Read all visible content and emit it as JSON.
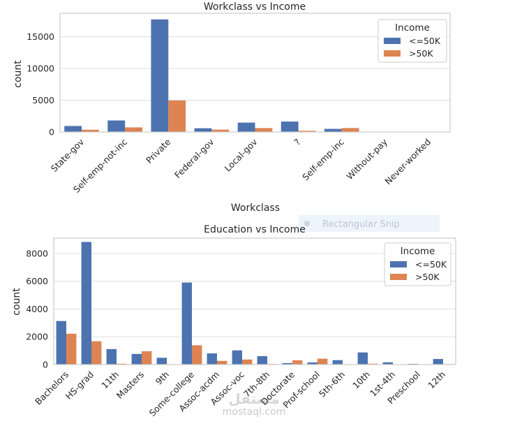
{
  "colors": {
    "low": "#4c72b0",
    "high": "#dd8452"
  },
  "legend": {
    "title": "Income",
    "labels": [
      "<=50K",
      ">50K"
    ]
  },
  "overlay": {
    "snip_label": "Rectangular Snip",
    "watermark_logo": "مستقل",
    "watermark_text": "mostaql.com"
  },
  "chart_data": [
    {
      "type": "bar",
      "title": "Workclass vs Income",
      "xlabel": "Workclass",
      "ylabel": "count",
      "categories": [
        "State-gov",
        "Self-emp-not-inc",
        "Private",
        "Federal-gov",
        "Local-gov",
        "?",
        "Self-emp-inc",
        "Without-pay",
        "Never-worked"
      ],
      "series": [
        {
          "name": "<=50K",
          "values": [
            945,
            1817,
            17733,
            589,
            1476,
            1645,
            494,
            14,
            7
          ]
        },
        {
          "name": ">50K",
          "values": [
            353,
            724,
            4963,
            371,
            617,
            191,
            622,
            0,
            0
          ]
        }
      ],
      "ylim": [
        0,
        18700
      ],
      "yticks": [
        0,
        5000,
        10000,
        15000
      ],
      "yticklabels": [
        "0",
        "5000",
        "10000",
        "15000"
      ]
    },
    {
      "type": "bar",
      "title": "Education vs Income",
      "xlabel": "",
      "ylabel": "count",
      "categories": [
        "Bachelors",
        "HS-grad",
        "11th",
        "Masters",
        "9th",
        "Some-college",
        "Assoc-acdm",
        "Assoc-voc",
        "7th-8th",
        "Doctorate",
        "Prof-school",
        "5th-6th",
        "10th",
        "1st-4th",
        "Preschool",
        "12th"
      ],
      "series": [
        {
          "name": "<=50K",
          "values": [
            3134,
            8826,
            1115,
            764,
            487,
            5904,
            802,
            1021,
            606,
            107,
            153,
            317,
            871,
            162,
            51,
            400
          ]
        },
        {
          "name": ">50K",
          "values": [
            2221,
            1675,
            60,
            959,
            27,
            1387,
            265,
            361,
            40,
            306,
            423,
            16,
            62,
            6,
            0,
            33
          ]
        }
      ],
      "ylim": [
        0,
        9100
      ],
      "yticks": [
        0,
        2000,
        4000,
        6000,
        8000
      ],
      "yticklabels": [
        "0",
        "2000",
        "4000",
        "6000",
        "8000"
      ]
    }
  ]
}
